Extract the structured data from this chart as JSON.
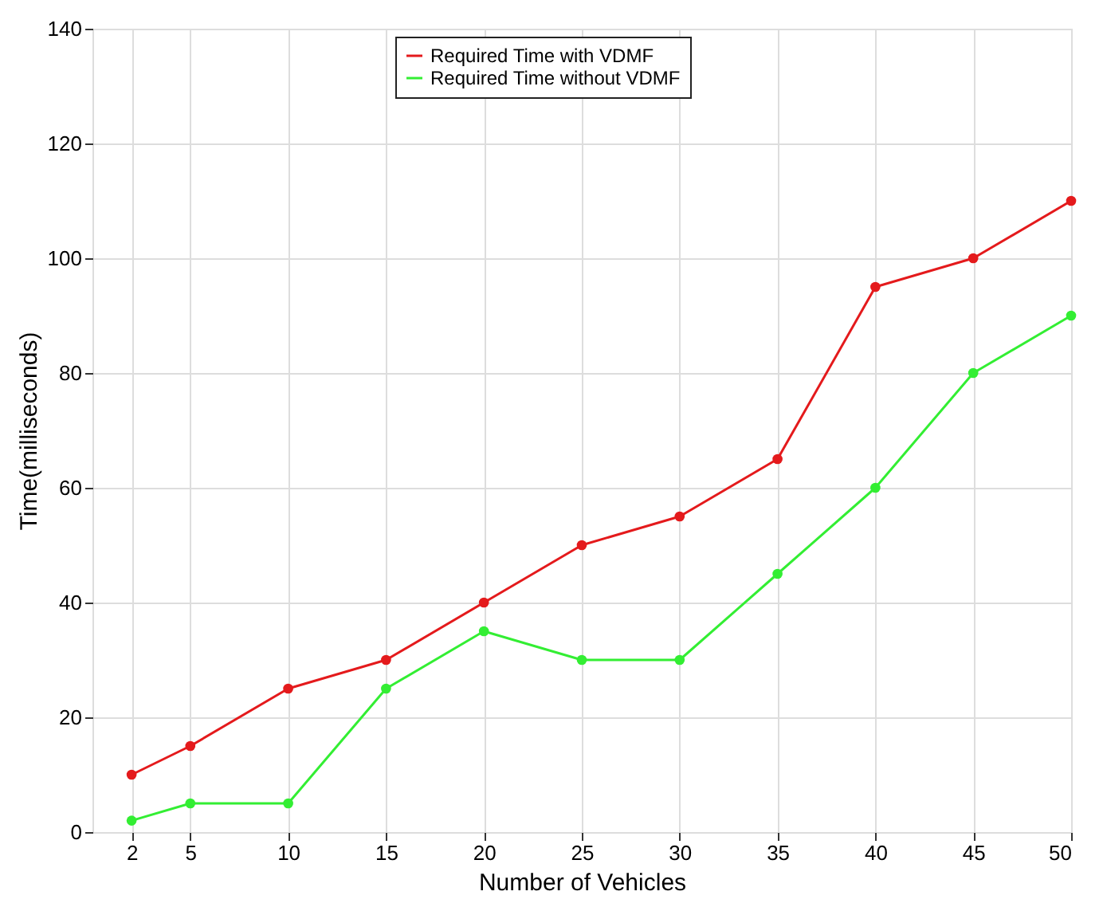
{
  "chart_data": {
    "type": "line",
    "xlabel": "Number of Vehicles",
    "ylabel": "Time(milliseconds)",
    "x": [
      2,
      5,
      10,
      15,
      20,
      25,
      30,
      35,
      40,
      45,
      50
    ],
    "series": [
      {
        "name": "Required Time with VDMF",
        "color": "#e41a1c",
        "values": [
          10,
          15,
          25,
          30,
          40,
          50,
          55,
          65,
          95,
          100,
          110
        ]
      },
      {
        "name": "Required Time without VDMF",
        "color": "#33ee33",
        "values": [
          2,
          5,
          5,
          25,
          35,
          30,
          30,
          45,
          60,
          80,
          90
        ]
      }
    ],
    "xlim": [
      0,
      50
    ],
    "xticks": [
      2,
      5,
      10,
      15,
      20,
      25,
      30,
      35,
      40,
      45,
      50
    ],
    "ylim": [
      0,
      140
    ],
    "yticks": [
      0,
      20,
      40,
      60,
      80,
      100,
      120,
      140
    ],
    "grid": true,
    "legend": "top",
    "marker": "circle",
    "line_style": "solid"
  }
}
